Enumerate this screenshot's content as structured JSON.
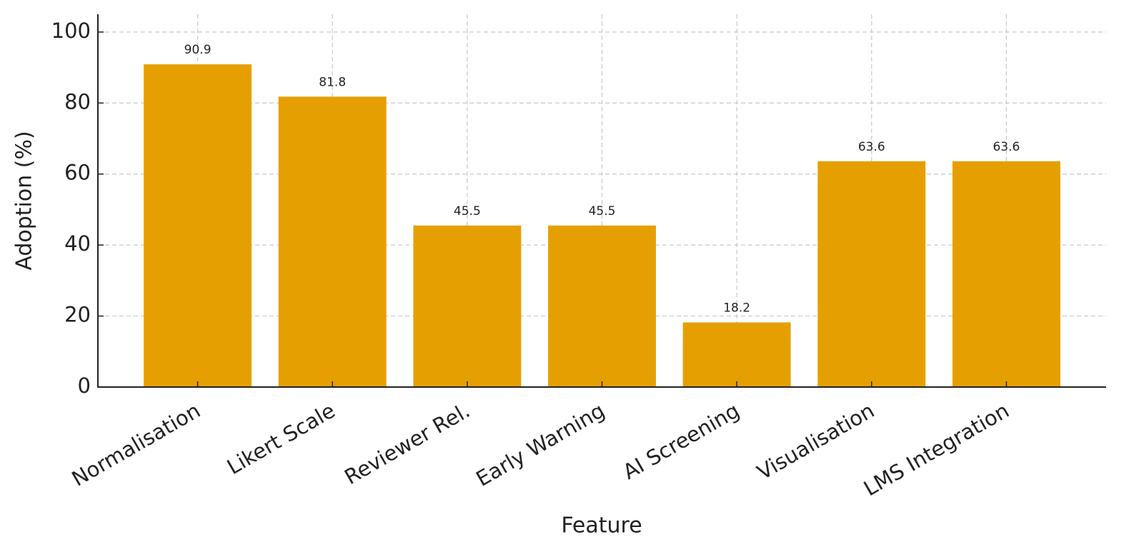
{
  "chart_data": {
    "type": "bar",
    "categories": [
      "Normalisation",
      "Likert Scale",
      "Reviewer Rel.",
      "Early Warning",
      "AI Screening",
      "Visualisation",
      "LMS Integration"
    ],
    "values": [
      90.9,
      81.8,
      45.5,
      45.5,
      18.2,
      63.6,
      63.6
    ],
    "color": "#e69f00",
    "x_label": "Feature",
    "y_label": "Adoption (%)",
    "ylim": [
      0,
      105
    ],
    "yticks": [
      0,
      20,
      40,
      60,
      80,
      100
    ],
    "grid": true
  }
}
